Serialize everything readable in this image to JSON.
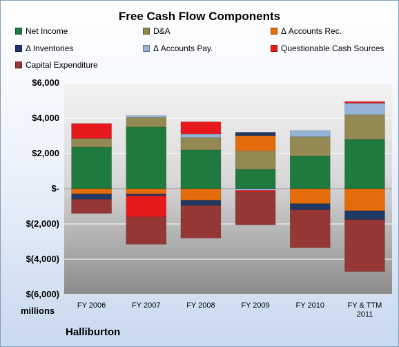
{
  "chart_data": {
    "type": "bar",
    "stacked": true,
    "title": "Free Cash Flow Components",
    "categories": [
      "FY 2006",
      "FY 2007",
      "FY 2008",
      "FY 2009",
      "FY 2010",
      "FY & TTM 2011"
    ],
    "ylim": [
      -6000,
      6000
    ],
    "yticks": [
      {
        "value": 6000,
        "label": "$6,000"
      },
      {
        "value": 4000,
        "label": "$4,000"
      },
      {
        "value": 2000,
        "label": "$2,000"
      },
      {
        "value": 0,
        "label": "$-"
      },
      {
        "value": -2000,
        "label": "$(2,000)"
      },
      {
        "value": -4000,
        "label": "$(4,000)"
      },
      {
        "value": -6000,
        "label": "$(6,000)"
      }
    ],
    "unit_label": "millions",
    "company": "Halliburton",
    "grid": true,
    "legend_position": "top",
    "series": [
      {
        "name": "Net Income",
        "color": "#1e7a3e",
        "values": [
          2350,
          3500,
          2200,
          1100,
          1850,
          2800
        ]
      },
      {
        "name": "D&A",
        "color": "#938953",
        "values": [
          500,
          550,
          700,
          1050,
          1100,
          1400
        ]
      },
      {
        "name": "Δ Accounts Rec.",
        "color": "#e46c0a",
        "values": [
          -300,
          -300,
          -650,
          850,
          -850,
          -1250
        ]
      },
      {
        "name": "Δ Inventories",
        "color": "#1f3864",
        "values": [
          -300,
          -100,
          -300,
          200,
          -350,
          -500
        ]
      },
      {
        "name": "Δ Accounts Pay.",
        "color": "#95b3d7",
        "values": [
          0,
          100,
          200,
          -100,
          350,
          650
        ]
      },
      {
        "name": "Questionable Cash Sources",
        "color": "#e8191c",
        "values": [
          850,
          -1200,
          700,
          -100,
          0,
          100
        ]
      },
      {
        "name": "Capital Expenditure",
        "color": "#953735",
        "values": [
          -800,
          -1550,
          -1850,
          -1850,
          -2150,
          -2950
        ]
      }
    ]
  }
}
